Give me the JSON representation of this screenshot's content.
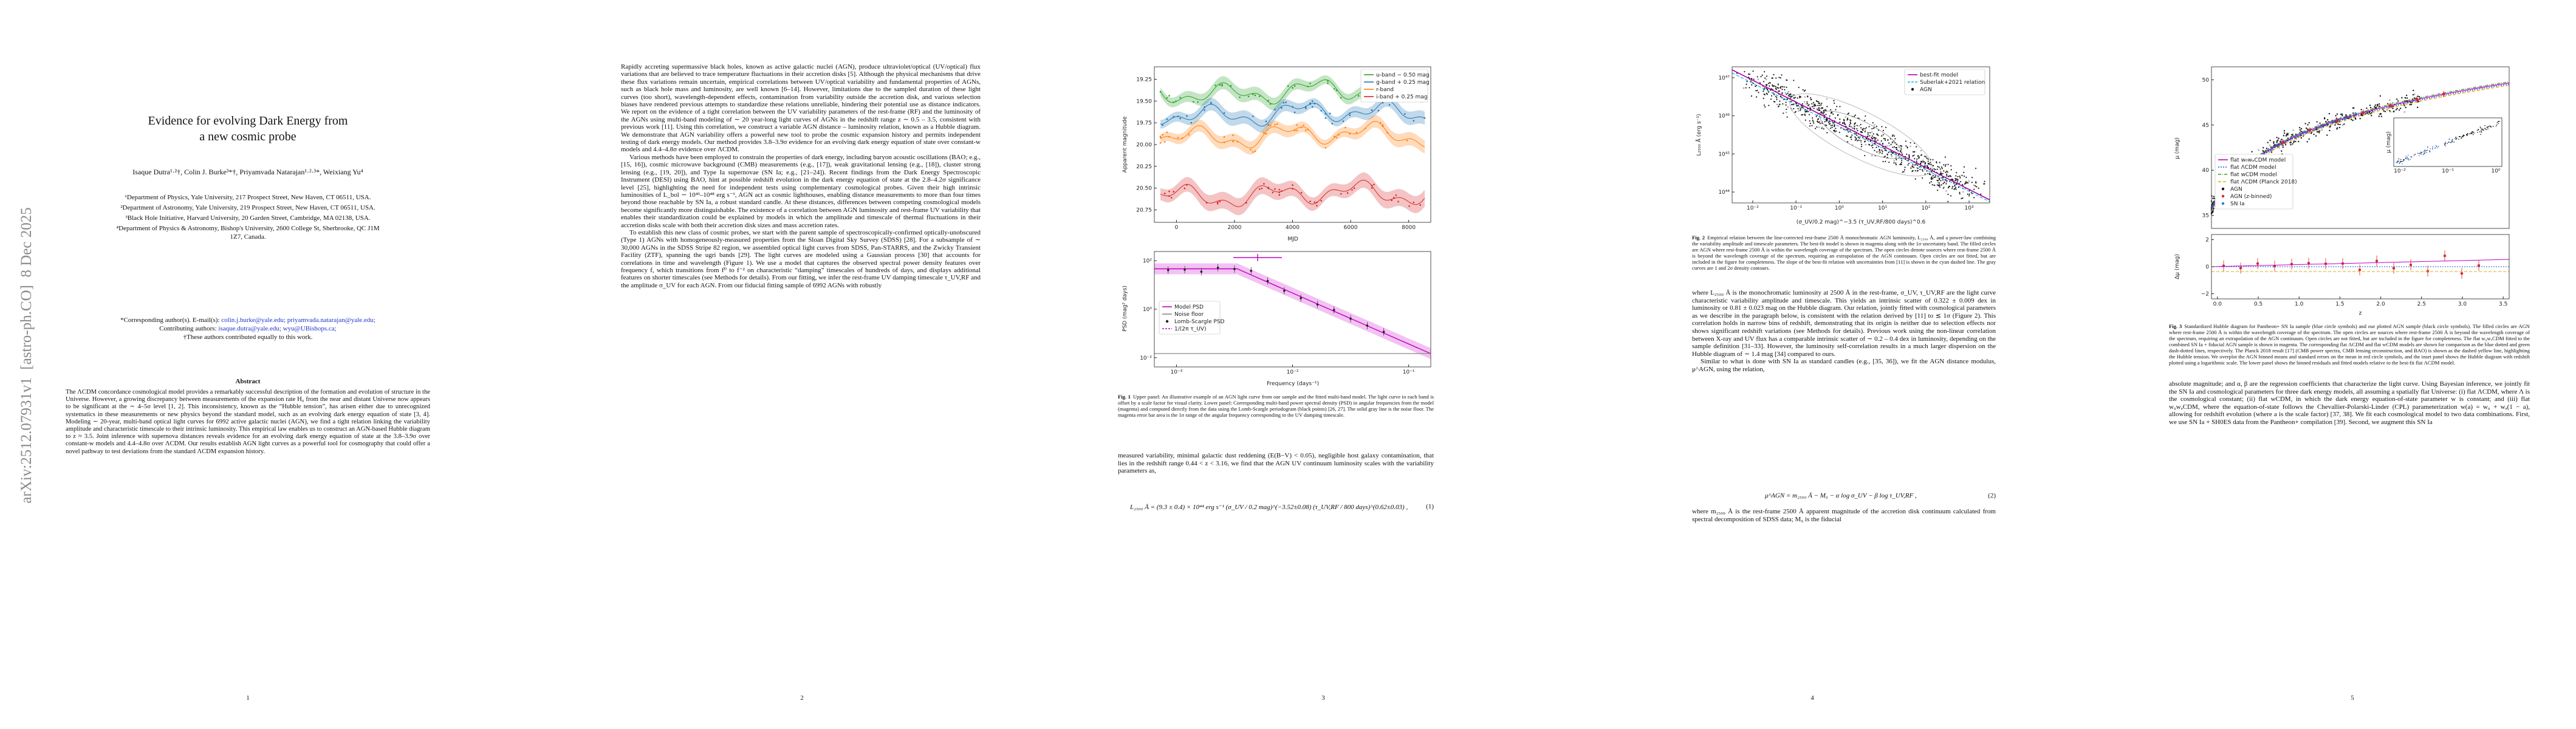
{
  "arxiv_stamp": "arXiv:2512.07931v1  [astro-ph.CO]  8 Dec 2025",
  "page1": {
    "title": "Evidence for evolving Dark Energy from a new cosmic probe",
    "authors": "Isaque Dutra¹·²†, Colin J. Burke³*†, Priyamvada Natarajan¹·²·³*, Weixiang Yu⁴",
    "affiliations": [
      "¹Department of Physics, Yale University, 217 Prospect Street, New Haven, CT 06511, USA.",
      "²Department of Astronomy, Yale University, 219 Prospect Street, New Haven, CT 06511, USA.",
      "³Black Hole Initiative, Harvard University, 20 Garden Street, Cambridge, MA 02138, USA.",
      "⁴Department of Physics & Astronomy, Bishop's University, 2600 College St, Sherbrooke, QC J1M 1Z7, Canada."
    ],
    "corresponding_label": "*Corresponding author(s). E-mail(s):",
    "corresponding_emails": "colin.j.burke@yale.edu; priyamvada.natarajan@yale.edu;",
    "contributing_label": "Contributing authors:",
    "contributing_emails": "isaque.dutra@yale.edu; wyu@UBishops.ca;",
    "equal_note": "†These authors contributed equally to this work.",
    "abstract_heading": "Abstract",
    "abstract": "The ΛCDM concordance cosmological model provides a remarkably successful description of the formation and evolution of structure in the Universe. However, a growing discrepancy between measurements of the expansion rate H₀ from the near and distant Universe now appears to be significant at the ∼ 4–5σ level [1, 2]. This inconsistency, known as the “Hubble tension”, has arisen either due to unrecognized systematics in these measurements or new physics beyond the standard model, such as an evolving dark energy equation of state [3, 4]. Modeling ∼ 20-year, multi-band optical light curves for 6992 active galactic nuclei (AGN), we find a tight relation linking the variability amplitude and characteristic timescale to their intrinsic luminosity. This empirical law enables us to construct an AGN-based Hubble diagram to z ≈ 3.5. Joint inference with supernova distances reveals evidence for an evolving dark energy equation of state at the 3.8–3.9σ over constant-w models and 4.4–4.8σ over ΛCDM. Our results establish AGN light curves as a powerful tool for cosmography that could offer a novel pathway to test deviations from the standard ΛCDM expansion history.",
    "page_number": "1"
  },
  "page2": {
    "paragraphs": [
      "Rapidly accreting supermassive black holes, known as active galactic nuclei (AGN), produce ultraviolet/optical (UV/optical) flux variations that are believed to trace temperature fluctuations in their accretion disks [5]. Although the physical mechanisms that drive these flux variations remain uncertain, empirical correlations between UV/optical variability and fundamental properties of AGNs, such as black hole mass and luminosity, are well known [6–14]. However, limitations due to the sampled duration of these light curves (too short), wavelength-dependent effects, contamination from variability outside the accretion disk, and various selection biases have rendered previous attempts to standardize these relations unreliable, hindering their potential use as distance indicators. We report on the evidence of a tight correlation between the UV variability parameters of the rest-frame (RF) and the luminosity of the AGNs using multi-band modeling of ∼ 20 year-long light curves of AGNs in the redshift range z ∼ 0.5 – 3.5, consistent with previous work [11]. Using this correlation, we construct a variable AGN distance – luminosity relation, known as a Hubble diagram. We demonstrate that AGN variability offers a powerful new tool to probe the cosmic expansion history and permits independent testing of dark energy models. Our method provides 3.8–3.9σ evidence for an evolving dark energy equation of state over constant-w models and 4.4–4.8σ evidence over ΛCDM.",
      "Various methods have been employed to constrain the properties of dark energy, including baryon acoustic oscillations (BAO; e.g., [15, 16]), cosmic microwave background (CMB) measurements (e.g., [17]), weak gravitational lensing (e.g., [18]), cluster strong lensing (e.g., [19, 20]), and Type Ia supernovae (SN Ia; e.g., [21–24]). Recent findings from the Dark Energy Spectroscopic Instrument (DESI) using BAO, hint at possible redshift evolution in the dark energy equation of state at the 2.8–4.2σ significance level [25], highlighting the need for independent tests using complementary cosmological probes. Given their high intrinsic luminosities of L_bol ∼ 10⁴³–10⁴⁸ erg s⁻¹, AGN act as cosmic lighthouses, enabling distance measurements to more than four times beyond those reachable by SN Ia, a robust standard candle. At these distances, differences between competing cosmological models become significantly more distinguishable. The existence of a correlation between AGN luminosity and rest-frame UV variability that enables their standardization could be explained by models in which the amplitude and timescale of thermal fluctuations in their accretion disks scale with both their accretion disk sizes and mass accretion rates.",
      "To establish this new class of cosmic probes, we start with the parent sample of spectroscopically-confirmed optically-unobscured (Type 1) AGNs with homogeneously-measured properties from the Sloan Digital Sky Survey (SDSS) [28]. For a subsample of ∼ 30,000 AGNs in the SDSS Stripe 82 region, we assembled optical light curves from SDSS, Pan-STARRS, and the Zwicky Transient Facility (ZTF), spanning the ugri bands [29]. The light curves are modeled using a Gaussian process [30] that accounts for correlations in time and wavelength (Figure 1). We use a model that captures the observed spectral power density features over frequency f, which transitions from f⁰ to f⁻² on characteristic “damping” timescales of hundreds of days, and displays additional features on shorter timescales (see Methods for details). From our fitting, we infer the rest-frame UV damping timescale τ_UV,RF and the amplitude σ_UV for each AGN. From our fiducial fitting sample of 6992 AGNs with robustly"
    ],
    "page_number": "2"
  },
  "page3": {
    "figure_top": {
      "ylabel": "Apparent magnitude",
      "xlabel": "MJD",
      "xticks": [
        "0",
        "2000",
        "4000",
        "6000",
        "8000"
      ],
      "yticks": [
        "20.75",
        "20.50",
        "20.25",
        "20.00",
        "19.75",
        "19.50",
        "19.25"
      ],
      "legend": [
        "u-band − 0.50 mag",
        "g-band + 0.25 mag",
        "r-band",
        "i-band + 0.25 mag"
      ]
    },
    "figure_bottom": {
      "ylabel": "PSD (mag² days)",
      "xlabel": "Frequency (days⁻¹)",
      "xticks": [
        "10⁻³",
        "10⁻²",
        "10⁻¹"
      ],
      "yticks": [
        "10⁻²",
        "10⁰",
        "10²"
      ],
      "legend": [
        "Model PSD",
        "Noise floor",
        "Lomb-Scargle PSD",
        "1/(2π τ_UV)"
      ]
    },
    "caption_label": "Fig. 1",
    "caption": "Upper panel: An illustrative example of an AGN light curve from our sample and the fitted multi-band model. The light curve in each band is offset by a scale factor for visual clarity. Lower panel: Corresponding multi-band power spectral density (PSD) in angular frequencies from the model (magenta) and computed directly from the data using the Lomb-Scargle periodogram (black points) [26, 27]. The solid gray line is the noise floor. The magenta error bar area is the 1σ range of the angular frequency corresponding to the UV damping timescale.",
    "text": "measured variability, minimal galactic dust reddening (E(B−V) < 0.05), negligible host galaxy contamination, that lies in the redshift range 0.44 < z < 3.16, we find that the AGN UV continuum luminosity scales with the variability parameters as,",
    "equation": "L₂₅₀₀ Å = (9.3 ± 0.4) × 10⁴⁴ erg s⁻¹ (σ_UV / 0.2 mag)^(−3.52±0.08) (τ_UV,RF / 800 days)^(0.62±0.03) ,",
    "equation_number": "(1)",
    "page_number": "3"
  },
  "page4": {
    "figure": {
      "ylabel": "L₂₅₀₀ Å (erg s⁻¹)",
      "xlabel": "(σ_UV/0.2 mag)^−3.5 (τ_UV,RF/800 days)^0.6",
      "xticks": [
        "10⁻²",
        "10⁻¹",
        "10⁰",
        "10¹",
        "10²",
        "10³"
      ],
      "yticks": [
        "10⁴⁴",
        "10⁴⁵",
        "10⁴⁶",
        "10⁴⁷"
      ],
      "legend": [
        "best-fit model",
        "Suberlak+2021 relation",
        "AGN"
      ]
    },
    "caption_label": "Fig. 2",
    "caption": "Empirical relation between the line-corrected rest-frame 2500 Å monochromatic AGN luminosity, L₂₅₀₀ Å, and a power-law combining the variability amplitude and timescale parameters. The best-fit model is shown in magenta along with the 1σ uncertainty band. The filled circles are AGN where rest-frame 2500 Å is within the wavelength coverage of the spectrum. The open circles denote sources where rest-frame 2500 Å is beyond the wavelength coverage of the spectrum, requiring an extrapolation of the AGN continuum. Open circles are not fitted, but are included in the figure for completeness. The slope of the best-fit relation with uncertainties from [11] is shown in the cyan dashed line. The gray curves are 1 and 2σ density contours.",
    "paragraphs": [
      "where L₂₅₀₀ Å is the monochromatic luminosity at 2500 Å in the rest-frame, σ_UV, τ_UV,RF are the light curve characteristic variability amplitude and timescale. This yields an intrinsic scatter of 0.322 ± 0.009 dex in luminosity or 0.81 ± 0.023 mag on the Hubble diagram. Our relation, jointly fitted with cosmological parameters as we describe in the paragraph below, is consistent with the relation derived by [11] to ≲ 1σ (Figure 2). This correlation holds in narrow bins of redshift, demonstrating that its origin is neither due to selection effects nor shows significant redshift variations (see Methods for details). Previous work using the non-linear correlation between X-ray and UV flux has a comparable intrinsic scatter of ∼ 0.2 – 0.4 dex in luminosity, depending on the sample definition [31–33]. However, the luminosity self-correlation results in a much larger dispersion on the Hubble diagram of ∼ 1.4 mag [34] compared to ours.",
      "Similar to what is done with SN Ia as standard candles (e.g., [35, 36]), we fit the AGN distance modulus, μ^AGN, using the relation,"
    ],
    "equation": "μ^AGN = m₂₅₀₀ Å − M₀ − α log σ_UV − β log τ_UV,RF ,",
    "equation_number": "(2)",
    "text_after": "where m₂₅₀₀ Å is the rest-frame 2500 Å apparent magnitude of the accretion disk continuum calculated from spectral decomposition of SDSS data; M₀ is the fiducial",
    "page_number": "4"
  },
  "page5": {
    "figure": {
      "ylabel": "μ (mag)",
      "ylabel_residual": "Δμ (mag)",
      "xlabel": "z",
      "xticks": [
        "0.0",
        "0.5",
        "1.0",
        "1.5",
        "2.0",
        "2.5",
        "3.0",
        "3.5"
      ],
      "yticks": [
        "35",
        "40",
        "45",
        "50"
      ],
      "yticks_residual": [
        "−2",
        "0",
        "2"
      ],
      "inset_ylabel": "μ (mag)",
      "inset_xticks": [
        "10⁻²",
        "10⁻¹",
        "10⁰"
      ],
      "legend": [
        "flat w₀wₐCDM model",
        "flat ΛCDM model",
        "flat wCDM model",
        "flat ΛCDM (Planck 2018)",
        "AGN",
        "AGN (z-binned)",
        "SN Ia"
      ]
    },
    "caption_label": "Fig. 3",
    "caption": "Standardized Hubble diagram for Pantheon+ SN Ia sample (blue circle symbols) and our plotted AGN sample (black circle symbols). The filled circles are AGN where rest-frame 2500 Å is within the wavelength coverage of the spectrum. The open circles are sources where rest-frame 2500 Å is beyond the wavelength coverage of the spectrum, requiring an extrapolation of the AGN continuum. Open circles are not fitted, but are included in the figure for completeness. The flat w₀wₐCDM fitted to the combined SN Ia + fiducial AGN sample is shown in magenta. The corresponding flat ΛCDM and flat wCDM models are shown for comparison as the blue dotted and green dash-dotted lines, respectively. The Planck 2018 result [17] (CMB power spectra, CMB lensing reconstruction, and BAO) is shown as the dashed yellow line, highlighting the Hubble tension. We overplot the AGN binned means and standard errors on the mean in red circle symbols, and the inset panel shows the Hubble diagram with redshift plotted using a logarithmic scale. The lower panel shows the binned residuals and fitted models relative to the best-fit flat ΛCDM model.",
    "text": "absolute magnitude; and α, β are the regression coefficients that characterize the light curve. Using Bayesian inference, we jointly fit the SN Ia and cosmological parameters for three dark energy models, all assuming a spatially flat Universe: (i) flat ΛCDM, where Λ is the cosmological constant; (ii) flat wCDM, in which the dark energy equation-of-state parameter w is constant; and (iii) flat w₀wₐCDM, where the equation-of-state follows the Chevallier-Polarski-Linder (CPL) parameterization w(a) = w₀ + wₐ(1 − a), allowing for redshift evolution (where a is the scale factor) [37, 38]. We fit each cosmological model to two data combinations. First, we use SN Ia + SH0ES data from the Pantheon+ compilation [39]. Second, we augment this SN Ia",
    "page_number": "5"
  }
}
